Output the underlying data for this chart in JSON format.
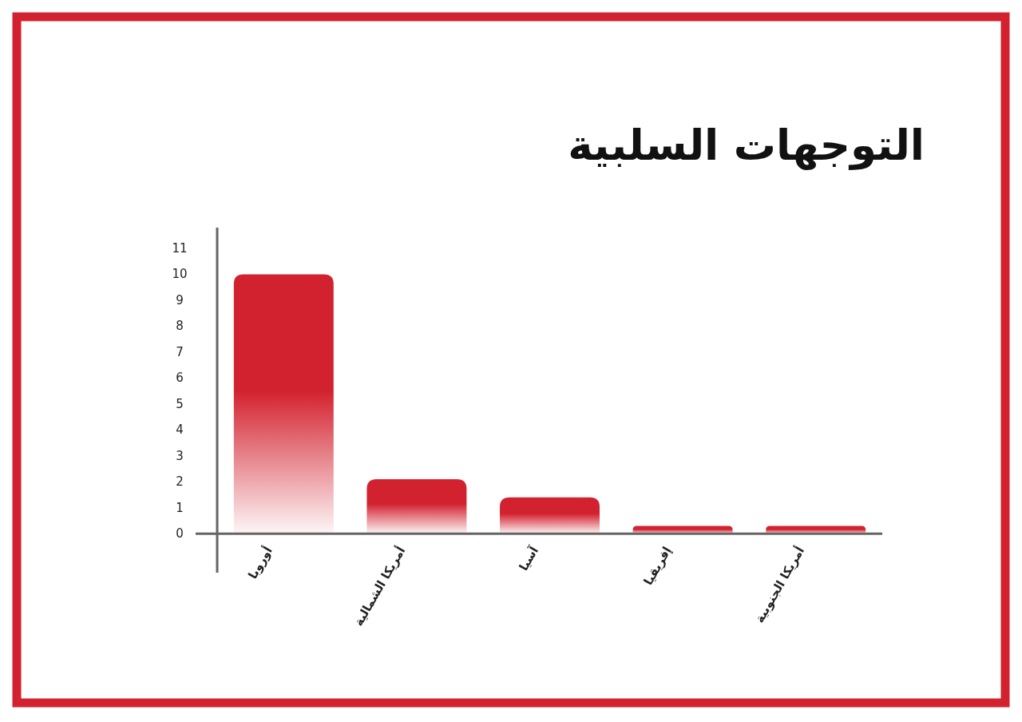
{
  "chart_data": {
    "type": "bar",
    "title": "التوجهات السلبية",
    "categories": [
      "أوروبا",
      "أمريكا الشمالية",
      "آسيا",
      "إفريقيا",
      "أمريكا الجنوبية"
    ],
    "values": [
      10,
      2.1,
      1.4,
      0.3,
      0.3
    ],
    "color": "#d3222f",
    "ylim": [
      -1.5,
      11.8
    ],
    "yticks": [
      0,
      1,
      2,
      3,
      4,
      5,
      6,
      7,
      8,
      9,
      10,
      11
    ]
  }
}
